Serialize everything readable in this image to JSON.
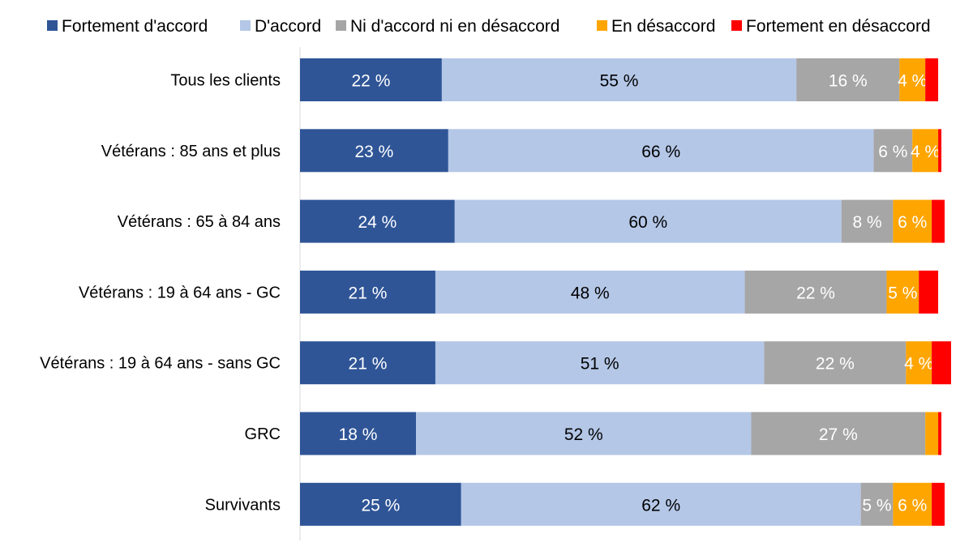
{
  "chart_data": {
    "type": "bar",
    "orientation": "horizontal",
    "stacked": true,
    "grid": false,
    "legend_position": "top",
    "categories": [
      "Tous les clients",
      "Vétérans : 85 ans et plus",
      "Vétérans : 65 à 84 ans",
      "Vétérans : 19 à 64 ans - GC",
      "Vétérans : 19 à 64 ans - sans GC",
      "GRC",
      "Survivants"
    ],
    "series": [
      {
        "name": "Fortement d'accord",
        "color": "#2F5597",
        "label_color": "#FFFFFF",
        "values": [
          22,
          23,
          24,
          21,
          21,
          18,
          25
        ],
        "labels": [
          "22 %",
          "23 %",
          "24 %",
          "21 %",
          "21 %",
          "18 %",
          "25 %"
        ]
      },
      {
        "name": "D'accord",
        "color": "#B4C7E7",
        "label_color": "#000000",
        "values": [
          55,
          66,
          60,
          48,
          51,
          52,
          62
        ],
        "labels": [
          "55 %",
          "66 %",
          "60 %",
          "48 %",
          "51 %",
          "52 %",
          "62 %"
        ]
      },
      {
        "name": "Ni d'accord ni en désaccord",
        "color": "#A6A6A6",
        "label_color": "#FFFFFF",
        "values": [
          16,
          6,
          8,
          22,
          22,
          27,
          5
        ],
        "labels": [
          "16 %",
          "6 %",
          "8 %",
          "22 %",
          "22 %",
          "27 %",
          "5 %"
        ]
      },
      {
        "name": "En désaccord",
        "color": "#FFA500",
        "label_color": "#FFFFFF",
        "values": [
          4,
          4,
          6,
          5,
          4,
          2,
          6
        ],
        "labels": [
          "4 %",
          "4 %",
          "6 %",
          "5 %",
          "4 %",
          "",
          "6 %"
        ]
      },
      {
        "name": "Fortement en désaccord",
        "color": "#FF0000",
        "label_color": "#FFFFFF",
        "values": [
          2,
          0.5,
          2,
          3,
          3,
          0.5,
          2
        ],
        "labels": [
          "",
          "",
          "",
          "",
          "",
          "",
          ""
        ]
      }
    ],
    "xlim": [
      0,
      100
    ]
  }
}
